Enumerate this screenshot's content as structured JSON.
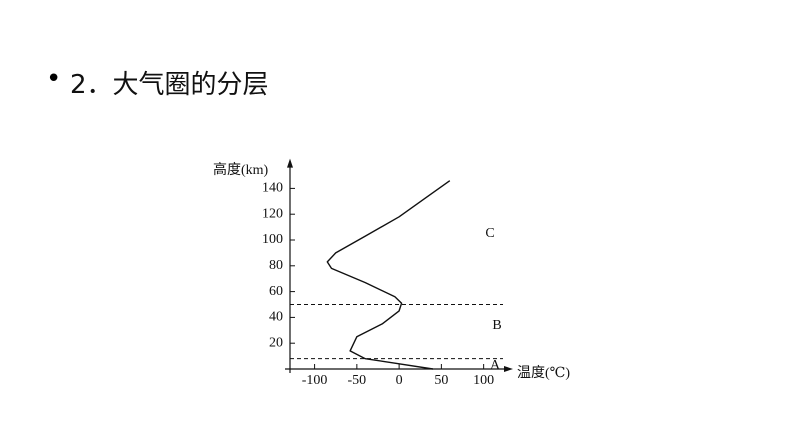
{
  "title": "2．大气圈的分层",
  "chart_data": {
    "type": "line",
    "y_label": "高度(km)",
    "x_label": "温度(℃)",
    "xlim": [
      -135,
      130
    ],
    "ylim": [
      0,
      160
    ],
    "xticks": [
      -100,
      -50,
      0,
      50,
      100
    ],
    "yticks": [
      20,
      40,
      60,
      80,
      100,
      120,
      140
    ],
    "series": [
      {
        "color": "#111111",
        "x": [
          40,
          0,
          -40,
          -58,
          -50,
          -20,
          0,
          3,
          -5,
          -40,
          -80,
          -85,
          -75,
          -40,
          0,
          30,
          60
        ],
        "values": [
          0,
          4,
          8,
          14,
          25,
          35,
          45,
          51,
          56,
          67,
          78,
          83,
          90,
          103,
          118,
          132,
          146
        ]
      }
    ],
    "boundaries": [
      8,
      50
    ],
    "layer_labels": [
      "A",
      "B",
      "C"
    ]
  }
}
